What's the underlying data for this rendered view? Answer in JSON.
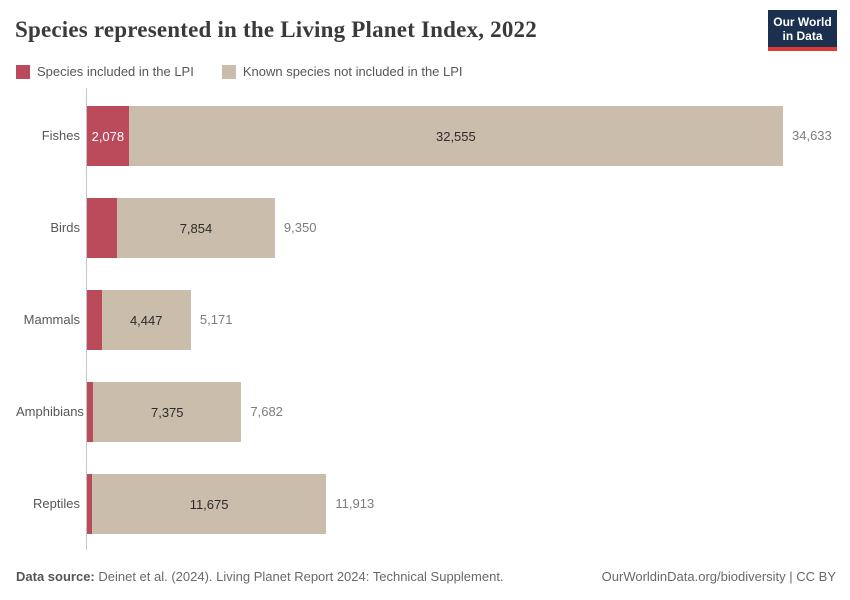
{
  "title": "Species represented in the Living Planet Index, 2022",
  "logo": {
    "line1": "Our World",
    "line2": "in Data"
  },
  "colors": {
    "lpi_red": "#bb4a5b",
    "not_included_tan": "#cbbdac",
    "logo_navy": "#1b2f4e",
    "logo_red_bar": "#dc3a32",
    "axis_gray": "#c6c6c6"
  },
  "legend": [
    {
      "label": "Species included in the LPI",
      "color": "#bb4a5b"
    },
    {
      "label": "Known species not included in the LPI",
      "color": "#cbbdac"
    }
  ],
  "chart_data": {
    "type": "bar",
    "stacked": true,
    "orientation": "horizontal",
    "title": "Species represented in the Living Planet Index, 2022",
    "categories": [
      "Fishes",
      "Birds",
      "Mammals",
      "Amphibians",
      "Reptiles"
    ],
    "series": [
      {
        "name": "Species included in the LPI",
        "color": "#bb4a5b",
        "values": [
          2078,
          1496,
          724,
          307,
          238
        ]
      },
      {
        "name": "Known species not included in the LPI",
        "color": "#cbbdac",
        "values": [
          32555,
          7854,
          4447,
          7375,
          11675
        ]
      }
    ],
    "totals": [
      34633,
      9350,
      5171,
      7682,
      11913
    ],
    "segment_labels_lpi": [
      "2,078",
      "",
      "",
      "",
      ""
    ],
    "segment_labels_not_included": [
      "32,555",
      "7,854",
      "4,447",
      "7,375",
      "11,675"
    ],
    "total_labels": [
      "34,633",
      "9,350",
      "5,171",
      "7,682",
      "11,913"
    ],
    "xlim": [
      0,
      34633
    ],
    "grid": false,
    "legend_position": "top"
  },
  "footer": {
    "source_prefix": "Data source:",
    "source_text": " Deinet et al. (2024). Living Planet Report 2024: Technical Supplement.",
    "credit": "OurWorldinData.org/biodiversity | CC BY"
  }
}
